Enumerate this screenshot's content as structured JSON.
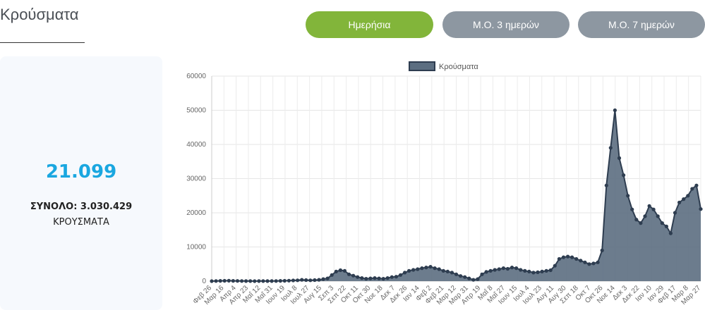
{
  "page": {
    "title": "Κρούσματα"
  },
  "buttons": {
    "daily": "Ημερήσια",
    "ma3": "Μ.Ο. 3 ημερών",
    "ma7": "Μ.Ο. 7 ημερών"
  },
  "stats": {
    "latest": "21.099",
    "total": "ΣΥΝΟΛΟ: 3.030.429",
    "label": "ΚΡΟΥΣΜΑΤΑ"
  },
  "colors": {
    "series": "#2e3d50",
    "fill": "#5c6e81",
    "active_button": "#82b53a",
    "inactive_button": "#8d97a1",
    "stat_value": "#1aa7e0"
  },
  "chart_data": {
    "type": "area",
    "legend": {
      "label": "Κρούσματα",
      "placement": "top"
    },
    "grid": true,
    "ylim": [
      0,
      60000
    ],
    "yticks": [
      0,
      10000,
      20000,
      30000,
      40000,
      50000,
      60000
    ],
    "xticks": [
      "Φεβ 26",
      "Μαρ 16",
      "Απρ 4",
      "Απρ 23",
      "Μαΐ 12",
      "Μαΐ 31",
      "Ιουν 19",
      "Ιουλ 8",
      "Ιουλ 27",
      "Αυγ 15",
      "Σεπ 3",
      "Σεπ 22",
      "Οκτ 11",
      "Οκτ 30",
      "Νοε 18",
      "Δεκ 7",
      "Δεκ 26",
      "Ιαν 14",
      "Φεβ 2",
      "Φεβ 21",
      "Μαρ 12",
      "Μαρ 31",
      "Απρ 19",
      "Μαΐ 8",
      "Μαΐ 27",
      "Ιουν 15",
      "Ιουλ 4",
      "Ιουλ 23",
      "Αυγ 11",
      "Αυγ 30",
      "Σεπ 18",
      "Οκτ 7",
      "Οκτ 26",
      "Νοε 14",
      "Δεκ 3",
      "Δεκ 22",
      "Ιαν 10",
      "Ιαν 29",
      "Φεβ 17",
      "Μαρ 8",
      "Μαρ 27"
    ],
    "series": [
      {
        "name": "Κρούσματα",
        "values": [
          0,
          50,
          80,
          100,
          120,
          80,
          60,
          40,
          20,
          20,
          10,
          30,
          20,
          20,
          30,
          50,
          80,
          100,
          150,
          200,
          250,
          400,
          300,
          250,
          300,
          400,
          600,
          800,
          1800,
          2800,
          3200,
          3000,
          2000,
          1600,
          1200,
          900,
          700,
          800,
          900,
          800,
          700,
          900,
          1200,
          1300,
          1800,
          2500,
          3000,
          3300,
          3500,
          3800,
          4000,
          4200,
          3800,
          3500,
          3000,
          2800,
          2500,
          2000,
          1500,
          1200,
          800,
          400,
          600,
          2000,
          2700,
          3000,
          3300,
          3500,
          3800,
          3600,
          4000,
          3800,
          3300,
          3000,
          2800,
          2500,
          2600,
          2800,
          3000,
          3200,
          4500,
          6500,
          7000,
          7200,
          7000,
          6500,
          6000,
          5500,
          5000,
          5200,
          5500,
          9000,
          28000,
          39000,
          50000,
          36000,
          31000,
          25000,
          21000,
          18000,
          17000,
          19000,
          22000,
          21000,
          19000,
          17000,
          16000,
          14000,
          20000,
          23000,
          24000,
          25000,
          27000,
          28000,
          21099
        ]
      }
    ]
  }
}
